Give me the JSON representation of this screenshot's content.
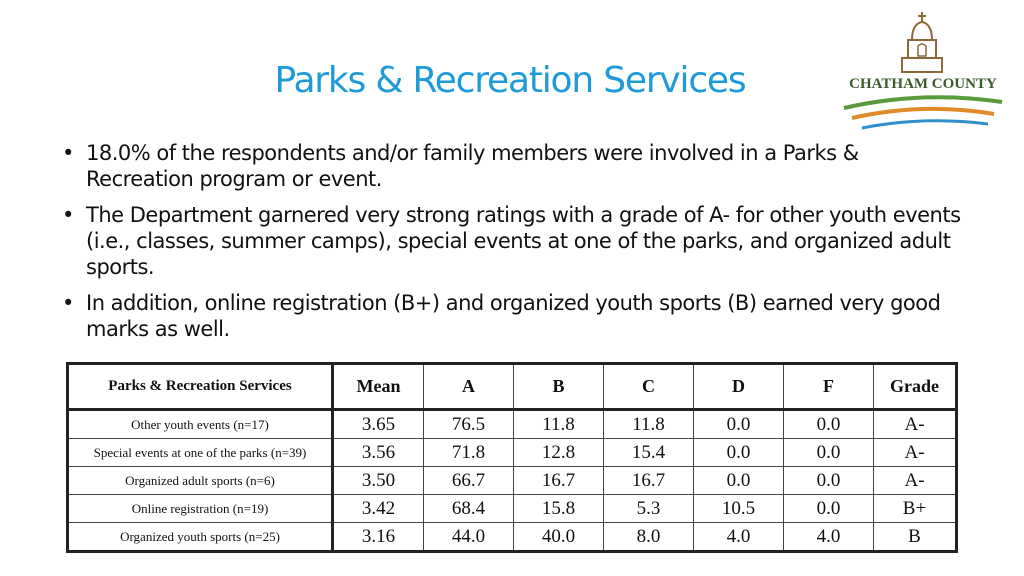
{
  "title": "Parks & Recreation Services",
  "logo": {
    "text": "CHATHAM COUNTY",
    "icon": "courthouse-icon",
    "colors": {
      "green": "#5a9a3a",
      "blue": "#2f8fc8",
      "orange": "#e08a2a",
      "brown": "#8a6a3a"
    }
  },
  "bullets": [
    "18.0% of the respondents and/or family members were involved in a Parks & Recreation program or event.",
    "The Department garnered very strong ratings with a grade of A- for other youth events (i.e., classes, summer camps), special events at one of the parks, and organized adult sports.",
    "In addition, online registration (B+) and organized youth sports (B) earned very good marks as well."
  ],
  "bullet_symbol": "•",
  "table": {
    "headers": [
      "Parks & Recreation Services",
      "Mean",
      "A",
      "B",
      "C",
      "D",
      "F",
      "Grade"
    ],
    "rows": [
      [
        "Other youth events (n=17)",
        "3.65",
        "76.5",
        "11.8",
        "11.8",
        "0.0",
        "0.0",
        "A-"
      ],
      [
        "Special events at one of the parks (n=39)",
        "3.56",
        "71.8",
        "12.8",
        "15.4",
        "0.0",
        "0.0",
        "A-"
      ],
      [
        "Organized adult sports (n=6)",
        "3.50",
        "66.7",
        "16.7",
        "16.7",
        "0.0",
        "0.0",
        "A-"
      ],
      [
        "Online registration (n=19)",
        "3.42",
        "68.4",
        "15.8",
        "5.3",
        "10.5",
        "0.0",
        "B+"
      ],
      [
        "Organized youth sports (n=25)",
        "3.16",
        "44.0",
        "40.0",
        "8.0",
        "4.0",
        "4.0",
        "B"
      ]
    ]
  },
  "colors": {
    "title": "#1f9ad8"
  }
}
